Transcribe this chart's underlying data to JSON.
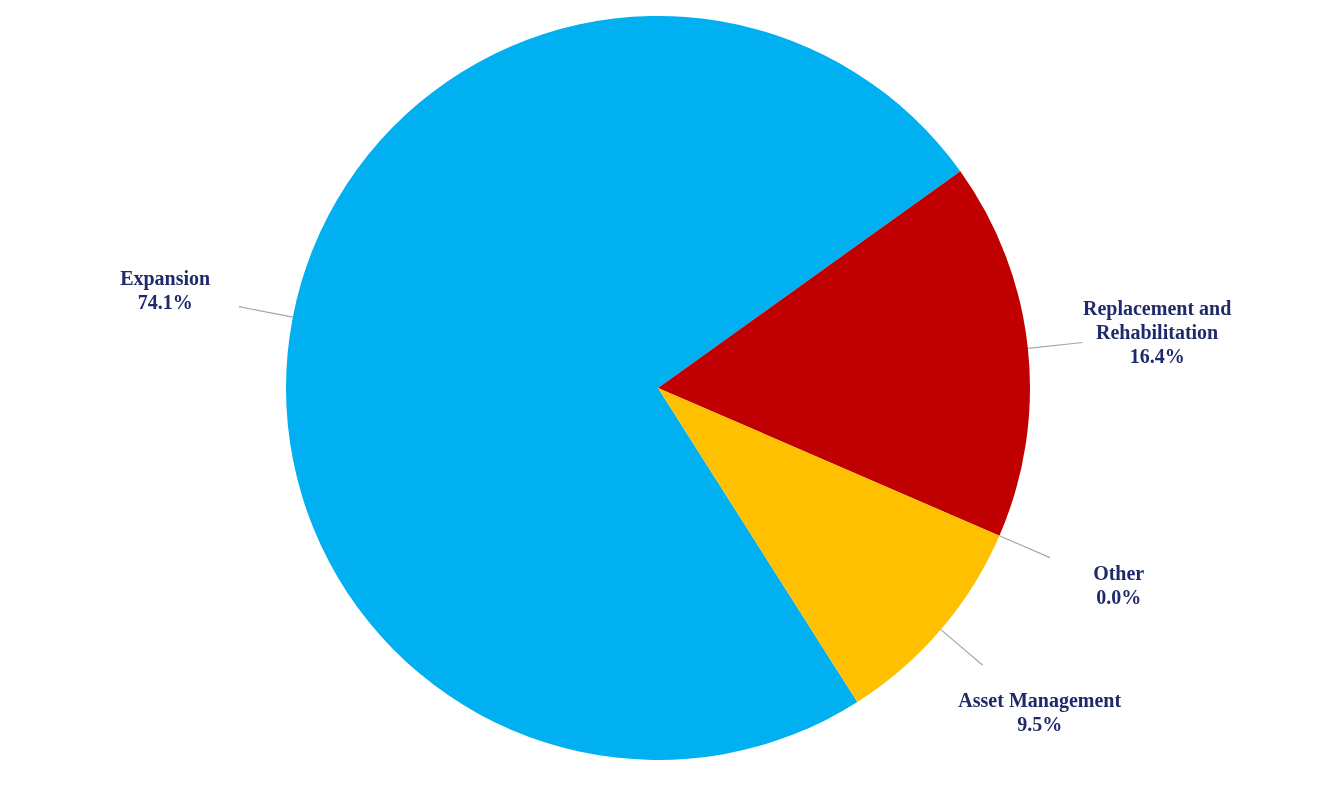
{
  "chart_data": {
    "type": "pie",
    "categories": [
      "Expansion",
      "Replacement and Rehabilitation",
      "Other",
      "Asset Management"
    ],
    "values": [
      74.1,
      16.4,
      0.0,
      9.5
    ],
    "colors": [
      "#00b0f0",
      "#c00000",
      "#7f7f7f",
      "#ffc000"
    ],
    "value_labels": [
      "74.1%",
      "16.4%",
      "0.0%",
      "9.5%"
    ]
  }
}
